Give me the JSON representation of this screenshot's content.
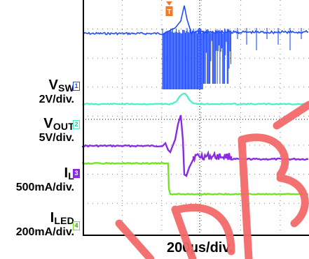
{
  "chart_data": {
    "type": "line",
    "timebase": "200µs/div.",
    "channels": [
      {
        "name_main": "V",
        "name_sub": "SW",
        "scale": "2V/div.",
        "marker": "1",
        "color": "#1f4cff"
      },
      {
        "name_main": "V",
        "name_sub": "OUT",
        "scale": "5V/div.",
        "marker": "2",
        "color": "#46f0c8"
      },
      {
        "name_main": "I",
        "name_sub": "L",
        "scale": "500mA/div.",
        "marker": "3",
        "color": "#8a2be2"
      },
      {
        "name_main": "I",
        "name_sub": "LED",
        "scale": "200mA/div.",
        "marker": "4",
        "color": "#6ee81a"
      }
    ],
    "trigger_marker": "T",
    "grid": true,
    "watermark_color": "#f46a6a",
    "grid_color": "#7a7a7a",
    "trigger_color": "#f07a28"
  }
}
